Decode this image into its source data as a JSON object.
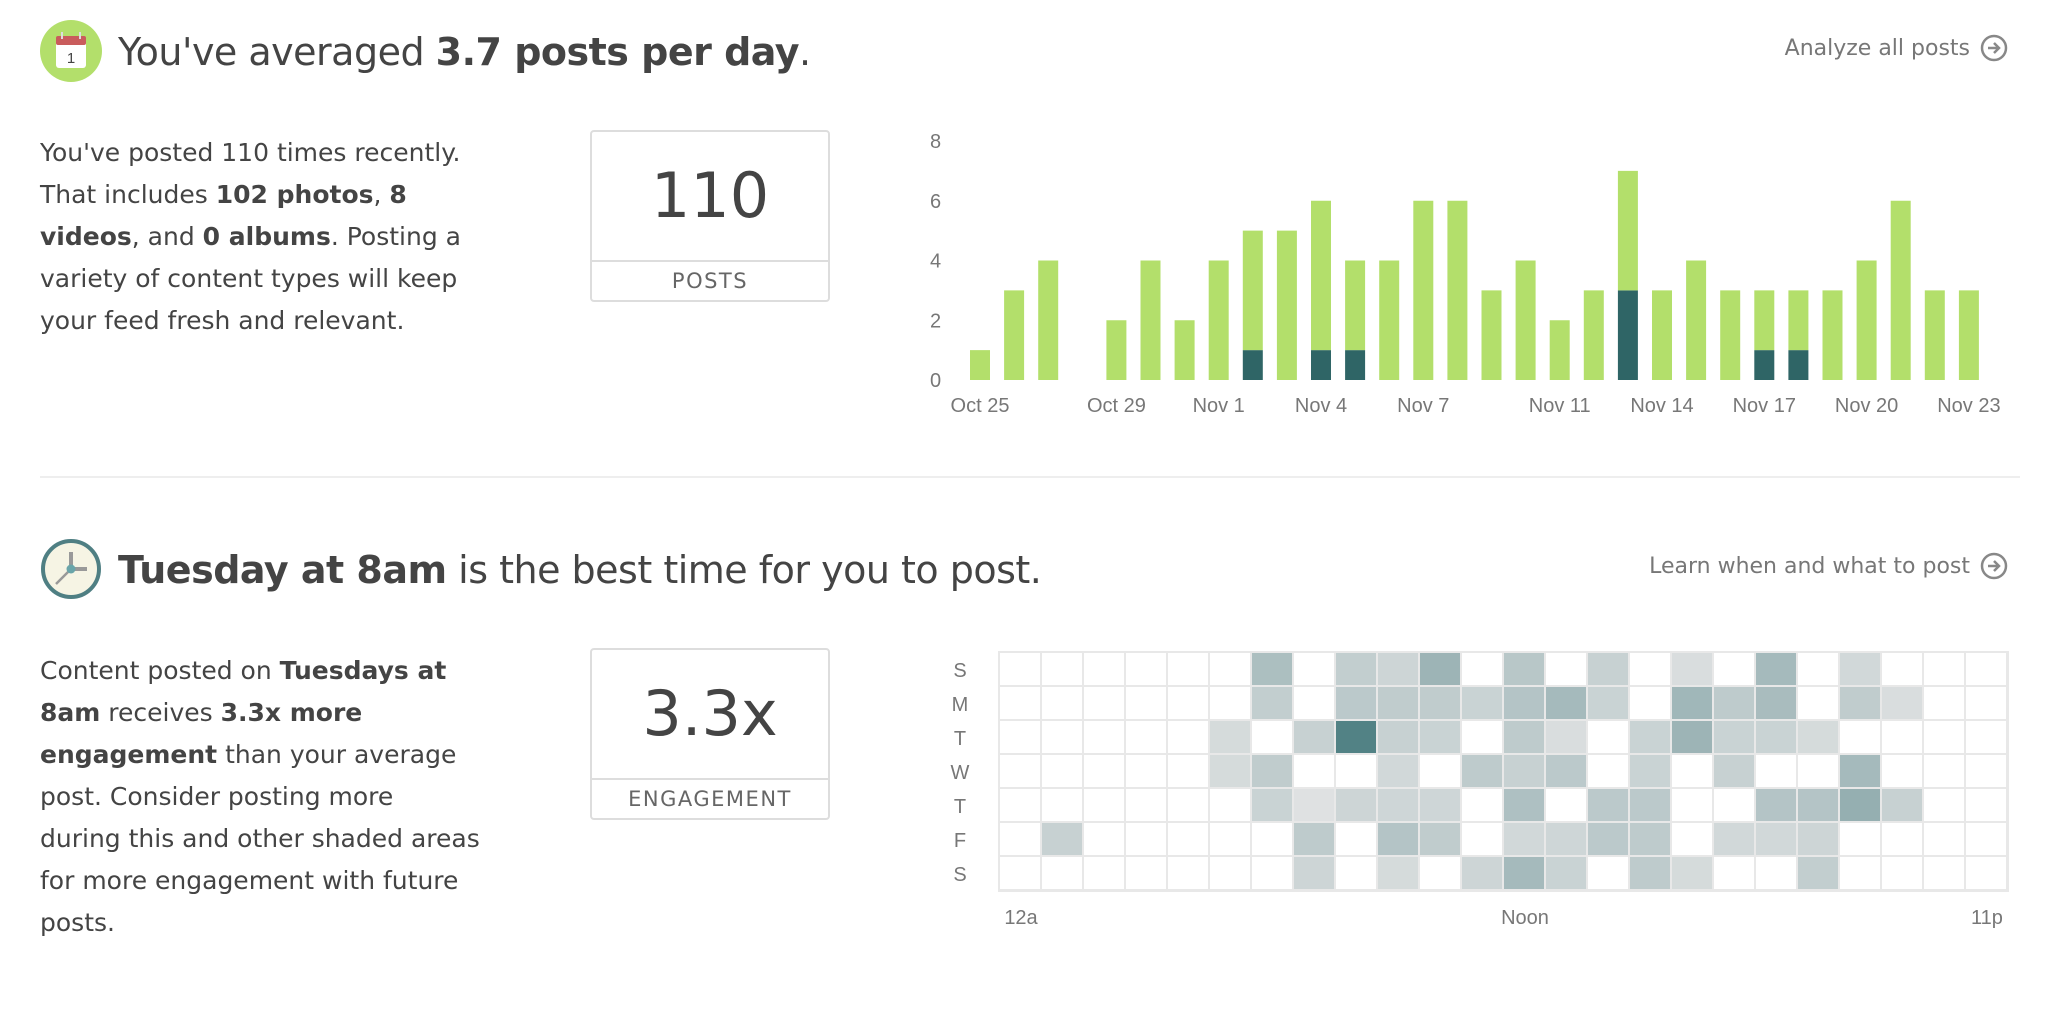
{
  "section1": {
    "title_pre": "You've averaged ",
    "title_bold": "3.7 posts per day",
    "title_post": ".",
    "calendar_day": "1",
    "link": "Analyze all posts",
    "para": [
      {
        "t": "You've posted 110 times recently. That includes "
      },
      {
        "b": "102 photos"
      },
      {
        "t": ", "
      },
      {
        "b": "8 videos"
      },
      {
        "t": ", and "
      },
      {
        "b": "0 albums"
      },
      {
        "t": ". Posting a variety of content types will keep your feed fresh and relevant."
      }
    ],
    "stat_value": "110",
    "stat_label": "POSTS"
  },
  "section2": {
    "title_bold": "Tuesday at 8am",
    "title_post": " is the best time for you to post.",
    "link": "Learn when and what to post",
    "para": [
      {
        "t": "Content posted on "
      },
      {
        "b": "Tuesdays at 8am"
      },
      {
        "t": " receives "
      },
      {
        "b": "3.3x more engagement"
      },
      {
        "t": " than your average post. Consider posting more during this and other shaded areas for more engagement with future posts."
      }
    ],
    "stat_value": "3.3x",
    "stat_label": "ENGAGEMENT"
  },
  "chart_data": [
    {
      "type": "bar",
      "stacked": true,
      "categories": [
        "Oct 25",
        "Oct 26",
        "Oct 27",
        "Oct 28",
        "Oct 29",
        "Oct 30",
        "Oct 31",
        "Nov 1",
        "Nov 2",
        "Nov 3",
        "Nov 4",
        "Nov 5",
        "Nov 6",
        "Nov 7",
        "Nov 8",
        "Nov 9",
        "Nov 10",
        "Nov 11",
        "Nov 12",
        "Nov 13",
        "Nov 14",
        "Nov 15",
        "Nov 16",
        "Nov 17",
        "Nov 18",
        "Nov 19",
        "Nov 20",
        "Nov 21",
        "Nov 22",
        "Nov 23"
      ],
      "tick_labels": {
        "0": "Oct 25",
        "4": "Oct 29",
        "7": "Nov 1",
        "10": "Nov 4",
        "13": "Nov 7",
        "17": "Nov 11",
        "20": "Nov 14",
        "23": "Nov 17",
        "26": "Nov 20",
        "29": "Nov 23"
      },
      "series": [
        {
          "name": "Videos",
          "color": "#2f6566",
          "values": [
            0,
            0,
            0,
            0,
            0,
            0,
            0,
            0,
            1,
            0,
            1,
            1,
            0,
            0,
            0,
            0,
            0,
            0,
            0,
            3,
            0,
            0,
            0,
            1,
            1,
            0,
            0,
            0,
            0,
            0
          ]
        },
        {
          "name": "Photos",
          "color": "#b3df6b",
          "values": [
            1,
            3,
            4,
            0,
            2,
            4,
            2,
            4,
            4,
            5,
            5,
            3,
            4,
            6,
            6,
            3,
            4,
            2,
            3,
            4,
            3,
            4,
            3,
            2,
            2,
            3,
            4,
            6,
            3,
            3
          ]
        }
      ],
      "yticks": [
        0,
        2,
        4,
        6,
        8
      ],
      "ylim": [
        0,
        8
      ]
    },
    {
      "type": "heatmap",
      "rows": [
        "S",
        "M",
        "T",
        "W",
        "T",
        "F",
        "S"
      ],
      "x_labels": {
        "0": "12a",
        "12": "Noon",
        "23": "11p"
      },
      "color": "#4f7f83",
      "values": [
        [
          0,
          0,
          0,
          0,
          0,
          0,
          0.4,
          0,
          0.25,
          0.18,
          0.5,
          0,
          0.32,
          0,
          0.22,
          0,
          0.1,
          0,
          0.45,
          0,
          0.15,
          0,
          0,
          0
        ],
        [
          0,
          0,
          0,
          0,
          0,
          0,
          0.25,
          0,
          0.3,
          0.27,
          0.27,
          0.2,
          0.35,
          0.45,
          0.2,
          0,
          0.48,
          0.28,
          0.42,
          0,
          0.27,
          0.1,
          0,
          0
        ],
        [
          0,
          0,
          0,
          0,
          0,
          0.13,
          0,
          0.22,
          1.0,
          0.22,
          0.2,
          0,
          0.28,
          0.1,
          0,
          0.2,
          0.5,
          0.2,
          0.2,
          0.12,
          0,
          0,
          0,
          0
        ],
        [
          0,
          0,
          0,
          0,
          0,
          0.13,
          0.27,
          0,
          0,
          0.15,
          0,
          0.28,
          0.22,
          0.3,
          0,
          0.2,
          0,
          0.22,
          0,
          0,
          0.45,
          0,
          0,
          0
        ],
        [
          0,
          0,
          0,
          0,
          0,
          0,
          0.2,
          0.05,
          0.18,
          0.17,
          0.17,
          0,
          0.38,
          0,
          0.3,
          0.3,
          0,
          0,
          0.35,
          0.35,
          0.55,
          0.22,
          0,
          0
        ],
        [
          0,
          0.22,
          0,
          0,
          0,
          0,
          0,
          0.28,
          0,
          0.35,
          0.27,
          0,
          0.15,
          0.17,
          0.3,
          0.28,
          0,
          0.15,
          0.15,
          0.18,
          0,
          0,
          0,
          0
        ],
        [
          0,
          0,
          0,
          0,
          0,
          0,
          0,
          0.18,
          0,
          0.13,
          0,
          0.18,
          0.45,
          0.2,
          0,
          0.28,
          0.12,
          0,
          0,
          0.25,
          0,
          0,
          0,
          0
        ]
      ]
    }
  ]
}
